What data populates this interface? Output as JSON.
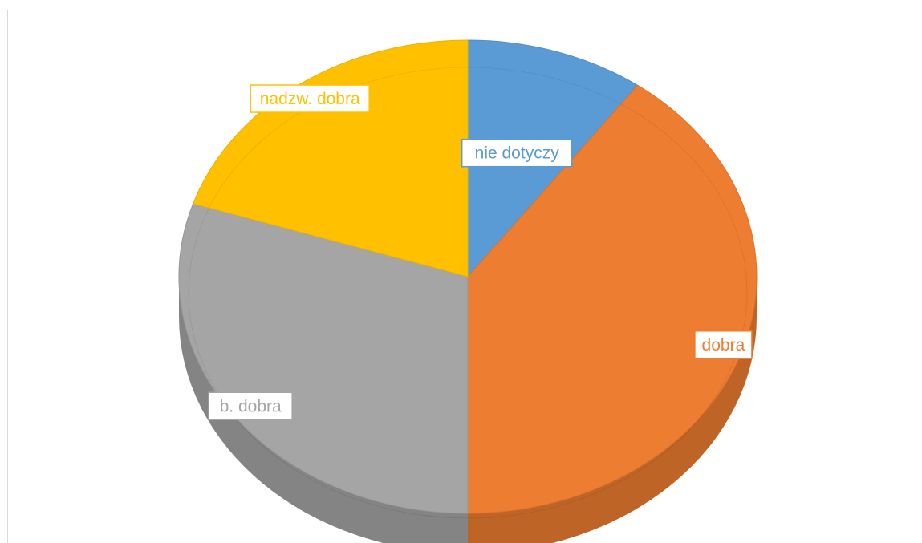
{
  "chart_data": {
    "type": "pie",
    "categories": [
      "nie dotyczy",
      "dobra",
      "b. dobra",
      "nadzw. dobra"
    ],
    "values": [
      10,
      40,
      30,
      20
    ],
    "colors": [
      "#5b9bd5",
      "#ed7d31",
      "#a5a5a5",
      "#ffc000"
    ],
    "data_labels": [
      "nie dotyczy",
      "dobra",
      "b. dobra",
      "nadzw. dobra"
    ],
    "legend": "none",
    "style": "3d"
  }
}
